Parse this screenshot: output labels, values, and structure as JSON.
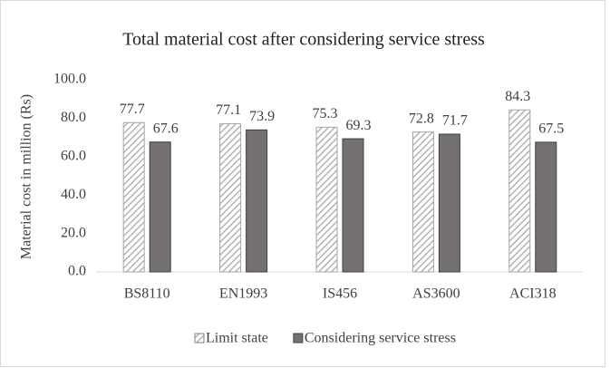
{
  "chart_data": {
    "type": "bar",
    "title": "Total material cost after considering service stress",
    "y_label": "Material cost in million (Rs)",
    "categories": [
      "BS8110",
      "EN1993",
      "IS456",
      "AS3600",
      "ACI318"
    ],
    "series": [
      {
        "name": "Limit state",
        "color": "#a6a6a6",
        "pattern": "hatch",
        "values": [
          77.7,
          77.1,
          75.3,
          72.8,
          84.3
        ]
      },
      {
        "name": "Considering service stress",
        "color": "#767171",
        "values": [
          67.6,
          73.9,
          69.3,
          71.7,
          67.5
        ]
      }
    ],
    "ylim": [
      0,
      100
    ],
    "yticks": [
      {
        "value": 0,
        "label": "0.0"
      },
      {
        "value": 20,
        "label": "20.0"
      },
      {
        "value": 40,
        "label": "40.0"
      },
      {
        "value": 60,
        "label": "60.0"
      },
      {
        "value": 80,
        "label": "80.0"
      },
      {
        "value": 100,
        "label": "100.0"
      }
    ],
    "grid": false,
    "legend": "bottom"
  }
}
